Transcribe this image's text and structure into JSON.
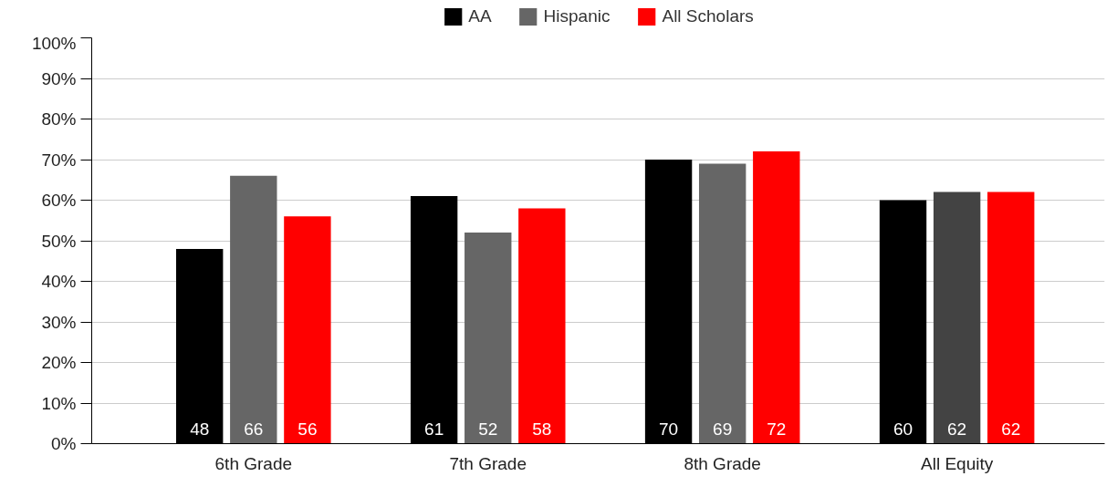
{
  "chart_data": {
    "type": "bar",
    "categories": [
      "6th Grade",
      "7th Grade",
      "8th Grade",
      "All Equity"
    ],
    "series": [
      {
        "name": "AA",
        "color": "#000000",
        "values": [
          48,
          61,
          70,
          60
        ]
      },
      {
        "name": "Hispanic",
        "color": "#666666",
        "colors": [
          "#666666",
          "#666666",
          "#666666",
          "#434343"
        ],
        "values": [
          66,
          52,
          69,
          62
        ]
      },
      {
        "name": "All Scholars",
        "color": "#ff0000",
        "values": [
          56,
          58,
          72,
          62
        ]
      }
    ],
    "ylim": [
      0,
      100
    ],
    "yticks": [
      {
        "value": 0,
        "label": "0%"
      },
      {
        "value": 10,
        "label": "10%"
      },
      {
        "value": 20,
        "label": "20%"
      },
      {
        "value": 30,
        "label": "30%"
      },
      {
        "value": 40,
        "label": "40%"
      },
      {
        "value": 50,
        "label": "50%"
      },
      {
        "value": 60,
        "label": "60%"
      },
      {
        "value": 70,
        "label": "70%"
      },
      {
        "value": 80,
        "label": "80%"
      },
      {
        "value": 90,
        "label": "90%"
      },
      {
        "value": 100,
        "label": "100%"
      }
    ],
    "grid": "y",
    "legend": "top",
    "data_labels": true
  }
}
